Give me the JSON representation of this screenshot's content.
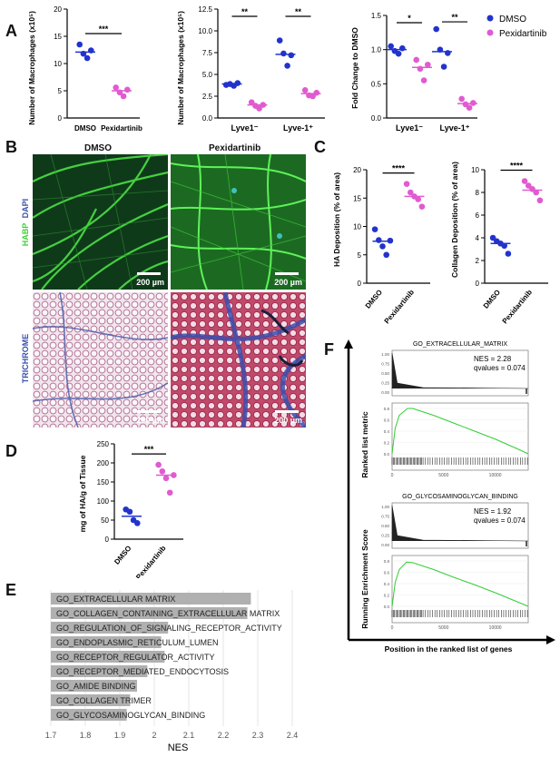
{
  "panels": {
    "A": "A",
    "B": "B",
    "C": "C",
    "D": "D",
    "E": "E",
    "F": "F"
  },
  "colors": {
    "dmso": "#2233cc",
    "pexidartinib": "#e05bd0",
    "nes_bar": "#b0b0b0",
    "running_line": "#33cc33",
    "habp_green": "#3fd23a",
    "trichrome_blue": "#3a4fae"
  },
  "panelB": {
    "col_dmso": "DMSO",
    "col_pexi": "Pexidartinib",
    "row1_label_habp": "HABP",
    "row1_label_dapi": "DAPI",
    "row2_label": "TRICHROME",
    "scale": "200 µm"
  },
  "chart_data": [
    {
      "id": "A1",
      "type": "scatter",
      "title": "",
      "xlabel": "",
      "ylabel": "Number of Macrophages (x10⁵)",
      "categories": [
        "DMSO",
        "Pexidartinib"
      ],
      "ylim": [
        0,
        20
      ],
      "yticks": [
        "0",
        "5",
        "10",
        "15",
        "20"
      ],
      "series": [
        {
          "category": "DMSO",
          "values": [
            13.5,
            11.8,
            11.0,
            12.4
          ],
          "mean": 12.1
        },
        {
          "category": "Pexidartinib",
          "values": [
            5.6,
            4.7,
            4.0,
            5.2
          ],
          "mean": 5.0
        }
      ],
      "significance": [
        "***"
      ]
    },
    {
      "id": "A2",
      "type": "scatter",
      "title": "",
      "xlabel": "",
      "ylabel": "Number of Macrophages (x10⁵)",
      "categories": [
        "Lyve1⁻",
        "Lyve-1⁺"
      ],
      "ylim": [
        0,
        12.5
      ],
      "yticks": [
        "0.0",
        "2.5",
        "5.0",
        "7.5",
        "10.0",
        "12.5"
      ],
      "series": [
        {
          "name": "DMSO",
          "group": "Lyve1⁻",
          "values": [
            3.8,
            3.9,
            3.7,
            4.0
          ],
          "mean": 3.9
        },
        {
          "name": "Pexidartinib",
          "group": "Lyve1⁻",
          "values": [
            1.8,
            1.4,
            1.1,
            1.5
          ],
          "mean": 1.5
        },
        {
          "name": "DMSO",
          "group": "Lyve-1⁺",
          "values": [
            8.9,
            7.4,
            6.0,
            7.2
          ],
          "mean": 7.3
        },
        {
          "name": "Pexidartinib",
          "group": "Lyve-1⁺",
          "values": [
            3.2,
            2.6,
            2.5,
            2.9
          ],
          "mean": 2.8
        }
      ],
      "significance": [
        "**",
        "**"
      ]
    },
    {
      "id": "A3",
      "type": "scatter",
      "title": "",
      "xlabel": "",
      "ylabel": "Fold Change to DMSO",
      "categories": [
        "Lyve1⁻",
        "Lyve-1⁺"
      ],
      "ylim": [
        0,
        1.5
      ],
      "yticks": [
        "0.0",
        "0.5",
        "1.0",
        "1.5"
      ],
      "legend": [
        {
          "name": "DMSO"
        },
        {
          "name": "Pexidartinib"
        }
      ],
      "series": [
        {
          "name": "DMSO",
          "group": "Lyve1⁻",
          "values": [
            1.05,
            0.98,
            0.94,
            1.02
          ],
          "mean": 1.0
        },
        {
          "name": "Pexidartinib",
          "group": "Lyve1⁻",
          "values": [
            0.85,
            0.72,
            0.55,
            0.78
          ],
          "mean": 0.74
        },
        {
          "name": "DMSO",
          "group": "Lyve-1⁺",
          "values": [
            1.3,
            1.0,
            0.75,
            0.95
          ],
          "mean": 0.97
        },
        {
          "name": "Pexidartinib",
          "group": "Lyve-1⁺",
          "values": [
            0.28,
            0.2,
            0.15,
            0.22
          ],
          "mean": 0.21
        }
      ],
      "significance": [
        "*",
        "**"
      ]
    },
    {
      "id": "C1",
      "type": "scatter",
      "title": "",
      "xlabel": "",
      "ylabel": "HA Deposition (% of area)",
      "categories": [
        "DMSO",
        "Pexidartinib"
      ],
      "ylim": [
        0,
        20
      ],
      "yticks": [
        "0",
        "5",
        "10",
        "15",
        "20"
      ],
      "series": [
        {
          "category": "DMSO",
          "values": [
            9.5,
            7.6,
            6.5,
            5.0,
            7.5
          ],
          "mean": 7.4
        },
        {
          "category": "Pexidartinib",
          "values": [
            17.5,
            16.0,
            15.3,
            14.8,
            13.5
          ],
          "mean": 15.3
        }
      ],
      "significance": [
        "****"
      ]
    },
    {
      "id": "C2",
      "type": "scatter",
      "title": "",
      "xlabel": "",
      "ylabel": "Collagen Deposition (% of area)",
      "categories": [
        "DMSO",
        "Pexidartinib"
      ],
      "ylim": [
        0,
        10
      ],
      "yticks": [
        "0",
        "2",
        "4",
        "6",
        "8",
        "10"
      ],
      "series": [
        {
          "category": "DMSO",
          "values": [
            4.0,
            3.7,
            3.5,
            3.3,
            2.6
          ],
          "mean": 3.5
        },
        {
          "category": "Pexidartinib",
          "values": [
            9.0,
            8.6,
            8.3,
            8.0,
            7.3
          ],
          "mean": 8.2
        }
      ],
      "significance": [
        "****"
      ]
    },
    {
      "id": "D",
      "type": "scatter",
      "title": "",
      "xlabel": "",
      "ylabel": "mg of HA/g of Tissue",
      "categories": [
        "DMSO",
        "Pexidartinib"
      ],
      "ylim": [
        0,
        250
      ],
      "yticks": [
        "0",
        "50",
        "100",
        "150",
        "200",
        "250"
      ],
      "series": [
        {
          "category": "DMSO",
          "values": [
            78,
            72,
            50,
            42
          ],
          "mean": 60
        },
        {
          "category": "Pexidartinib",
          "values": [
            195,
            178,
            160,
            122,
            168
          ],
          "mean": 168
        }
      ],
      "significance": [
        "***"
      ]
    },
    {
      "id": "E",
      "type": "bar",
      "orientation": "horizontal",
      "title": "",
      "xlabel": "NES",
      "ylabel": "",
      "xlim": [
        1.7,
        2.4
      ],
      "xticks": [
        "1.7",
        "1.8",
        "1.9",
        "2",
        "2.1",
        "2.2",
        "2.3",
        "2.4"
      ],
      "categories": [
        "GO_EXTRACELLULAR MATRIX",
        "GO_COLLAGEN_CONTAINING_EXTRACELLULAR MATRIX",
        "GO_REGULATION_OF_SIGNALING_RECEPTOR_ACTIVITY",
        "GO_ENDOPLASMIC_RETICULUM_LUMEN",
        "GO_RECEPTOR_REGULATOR_ACTIVITY",
        "GO_RECEPTOR_MEDIATED_ENDOCYTOSIS",
        "GO_AMIDE BINDING",
        "GO_COLLAGEN TRIMER",
        "GO_GLYCOSAMINOGLYCAN_BINDING"
      ],
      "values": [
        2.28,
        2.27,
        2.04,
        2.02,
        2.03,
        1.98,
        1.95,
        1.93,
        1.92
      ]
    },
    {
      "id": "F",
      "type": "line",
      "title": "",
      "xlabel": "Position in the ranked list of genes",
      "ylabel_left": "Running Enrichment Score",
      "ylabel_right": "Ranked list metric",
      "subplots": [
        {
          "name": "GO_EXTRACELLULAR_MATRIX",
          "nes": "NES = 2.28",
          "qvalue": "qvalues = 0.074",
          "top_yticks": [
            "1.00",
            "0.75",
            "0.50",
            "0.25",
            "0.00"
          ],
          "es_yticks": [
            "0.8",
            "0.6",
            "0.4",
            "0.2",
            "0.0"
          ],
          "xticks": [
            "0",
            "5000",
            "10000"
          ],
          "x": [
            0,
            300,
            700,
            1500,
            2000,
            4000,
            6000,
            8000,
            10000,
            12000,
            13200
          ],
          "y": [
            0,
            0.45,
            0.68,
            0.8,
            0.8,
            0.68,
            0.54,
            0.4,
            0.26,
            0.1,
            0.0
          ]
        },
        {
          "name": "GO_GLYCOSAMINOGLYCAN_BINDING",
          "nes": "NES = 1.92",
          "qvalue": "qvalues = 0.074",
          "top_yticks": [
            "1.00",
            "0.75",
            "0.50",
            "0.25",
            "0.00"
          ],
          "es_yticks": [
            "0.8",
            "0.6",
            "0.4",
            "0.2",
            "0.0"
          ],
          "xticks": [
            "0",
            "5000",
            "10000"
          ],
          "x": [
            0,
            300,
            700,
            1400,
            2000,
            4000,
            6000,
            8000,
            10000,
            12000,
            13200
          ],
          "y": [
            0,
            0.42,
            0.65,
            0.78,
            0.77,
            0.65,
            0.51,
            0.38,
            0.24,
            0.09,
            0.0
          ]
        }
      ]
    }
  ]
}
